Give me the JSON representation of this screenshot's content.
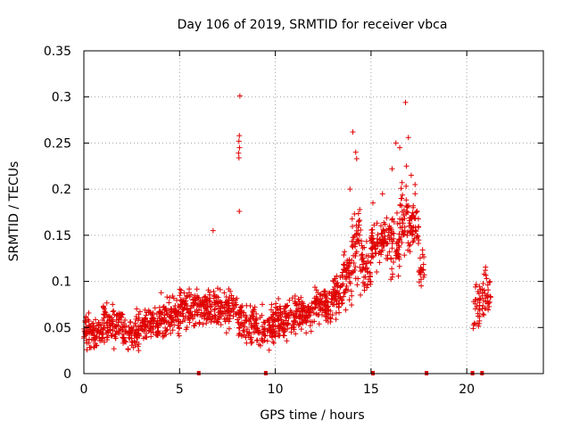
{
  "chart_data": {
    "type": "scatter",
    "title": "Day 106 of 2019, SRMTID for receiver vbca",
    "xlabel": "GPS time / hours",
    "ylabel": "SRMTID / TECUs",
    "xlim": [
      0,
      24
    ],
    "ylim": [
      0,
      0.35
    ],
    "grid": true,
    "x_ticks": [
      0,
      5,
      10,
      15,
      20
    ],
    "x_tick_labels": [
      "0",
      "5",
      "10",
      "15",
      "20"
    ],
    "y_ticks": [
      0,
      0.05,
      0.1,
      0.15,
      0.2,
      0.25,
      0.3,
      0.35
    ],
    "y_tick_labels": [
      "0",
      "0.05",
      "0.1",
      "0.15",
      "0.2",
      "0.25",
      "0.3",
      "0.35"
    ],
    "marker": "+",
    "color": "#e00000",
    "outliers": [
      {
        "x": 8.15,
        "y": 0.301
      },
      {
        "x": 8.12,
        "y": 0.258
      },
      {
        "x": 8.1,
        "y": 0.252
      },
      {
        "x": 8.13,
        "y": 0.245
      },
      {
        "x": 8.08,
        "y": 0.239
      },
      {
        "x": 8.1,
        "y": 0.234
      },
      {
        "x": 8.12,
        "y": 0.176
      },
      {
        "x": 6.75,
        "y": 0.155
      },
      {
        "x": 14.05,
        "y": 0.262
      },
      {
        "x": 16.8,
        "y": 0.294
      },
      {
        "x": 16.95,
        "y": 0.256
      },
      {
        "x": 16.3,
        "y": 0.25
      },
      {
        "x": 16.5,
        "y": 0.245
      },
      {
        "x": 14.2,
        "y": 0.24
      },
      {
        "x": 14.25,
        "y": 0.233
      },
      {
        "x": 16.85,
        "y": 0.225
      },
      {
        "x": 16.1,
        "y": 0.222
      },
      {
        "x": 17.1,
        "y": 0.215
      },
      {
        "x": 17.3,
        "y": 0.205
      },
      {
        "x": 13.9,
        "y": 0.2
      },
      {
        "x": 15.6,
        "y": 0.195
      },
      {
        "x": 16.6,
        "y": 0.19
      },
      {
        "x": 15.1,
        "y": 0.185
      },
      {
        "x": 17.2,
        "y": 0.18
      }
    ],
    "density_profile": [
      {
        "x0": 0.0,
        "x1": 1.0,
        "center": 0.045,
        "spread": 0.017,
        "count": 90
      },
      {
        "x0": 1.0,
        "x1": 2.0,
        "center": 0.055,
        "spread": 0.02,
        "count": 90
      },
      {
        "x0": 2.0,
        "x1": 3.0,
        "center": 0.045,
        "spread": 0.018,
        "count": 85
      },
      {
        "x0": 3.0,
        "x1": 4.0,
        "center": 0.055,
        "spread": 0.017,
        "count": 90
      },
      {
        "x0": 4.0,
        "x1": 5.0,
        "center": 0.062,
        "spread": 0.018,
        "count": 90
      },
      {
        "x0": 5.0,
        "x1": 6.0,
        "center": 0.07,
        "spread": 0.018,
        "count": 90
      },
      {
        "x0": 6.0,
        "x1": 7.0,
        "center": 0.07,
        "spread": 0.018,
        "count": 90
      },
      {
        "x0": 7.0,
        "x1": 8.0,
        "center": 0.07,
        "spread": 0.018,
        "count": 85
      },
      {
        "x0": 8.0,
        "x1": 9.0,
        "center": 0.055,
        "spread": 0.02,
        "count": 85
      },
      {
        "x0": 9.0,
        "x1": 10.0,
        "center": 0.05,
        "spread": 0.018,
        "count": 85
      },
      {
        "x0": 10.0,
        "x1": 11.0,
        "center": 0.06,
        "spread": 0.018,
        "count": 90
      },
      {
        "x0": 11.0,
        "x1": 12.0,
        "center": 0.065,
        "spread": 0.018,
        "count": 90
      },
      {
        "x0": 12.0,
        "x1": 13.0,
        "center": 0.075,
        "spread": 0.018,
        "count": 90
      },
      {
        "x0": 13.0,
        "x1": 13.5,
        "center": 0.085,
        "spread": 0.02,
        "count": 50
      },
      {
        "x0": 13.5,
        "x1": 14.0,
        "center": 0.105,
        "spread": 0.028,
        "count": 50
      },
      {
        "x0": 14.0,
        "x1": 14.5,
        "center": 0.14,
        "spread": 0.04,
        "count": 50
      },
      {
        "x0": 14.5,
        "x1": 15.0,
        "center": 0.115,
        "spread": 0.025,
        "count": 45
      },
      {
        "x0": 15.0,
        "x1": 15.5,
        "center": 0.14,
        "spread": 0.022,
        "count": 45
      },
      {
        "x0": 15.5,
        "x1": 16.0,
        "center": 0.145,
        "spread": 0.022,
        "count": 45
      },
      {
        "x0": 16.0,
        "x1": 16.5,
        "center": 0.14,
        "spread": 0.03,
        "count": 45
      },
      {
        "x0": 16.5,
        "x1": 17.0,
        "center": 0.165,
        "spread": 0.035,
        "count": 45
      },
      {
        "x0": 17.0,
        "x1": 17.5,
        "center": 0.16,
        "spread": 0.03,
        "count": 45
      },
      {
        "x0": 17.5,
        "x1": 17.8,
        "center": 0.11,
        "spread": 0.02,
        "count": 20
      },
      {
        "x0": 20.3,
        "x1": 20.8,
        "center": 0.075,
        "spread": 0.025,
        "count": 30
      },
      {
        "x0": 20.8,
        "x1": 21.3,
        "center": 0.09,
        "spread": 0.025,
        "count": 35
      }
    ],
    "zero_markers_x": [
      6.0,
      9.5,
      15.1,
      17.9,
      20.3,
      20.8
    ]
  }
}
